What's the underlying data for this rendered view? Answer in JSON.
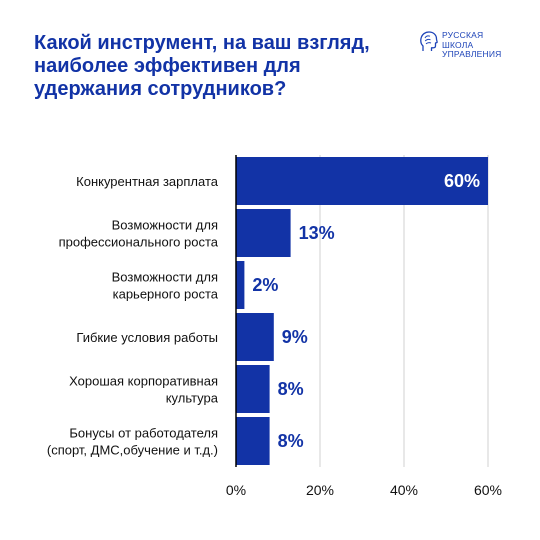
{
  "header": {
    "title": "Какой инструмент, на ваш взгляд,\nнаиболее эффективен для\nудержания сотрудников?",
    "logo_text": "РУССКАЯ\nШКОЛА\nУПРАВЛЕНИЯ",
    "logo_icon": "head-profile-icon"
  },
  "colors": {
    "bar": "#1233a6",
    "value_inside": "#ffffff",
    "value_outside": "#1233a6",
    "axis": "#000000",
    "grid": "#d0d0d0"
  },
  "chart_data": {
    "type": "bar",
    "orientation": "horizontal",
    "title": "Какой инструмент, на ваш взгляд, наиболее эффективен для удержания сотрудников?",
    "categories": [
      [
        "Конкурентная зарплата"
      ],
      [
        "Возможности для",
        "профессионального роста"
      ],
      [
        "Возможности для",
        "карьерного роста"
      ],
      [
        "Гибкие условия работы"
      ],
      [
        "Хорошая корпоративная",
        "культура"
      ],
      [
        "Бонусы от работодателя",
        "(спорт, ДМС,обучение и т.д.)"
      ]
    ],
    "values": [
      60,
      13,
      2,
      9,
      8,
      8
    ],
    "value_labels": [
      "60%",
      "13%",
      "2%",
      "9%",
      "8%",
      "8%"
    ],
    "xlim": [
      0,
      60
    ],
    "xticks": [
      0,
      20,
      40,
      60
    ],
    "xtick_labels": [
      "0%",
      "20%",
      "40%",
      "60%"
    ],
    "grid": true,
    "legend": "none"
  }
}
